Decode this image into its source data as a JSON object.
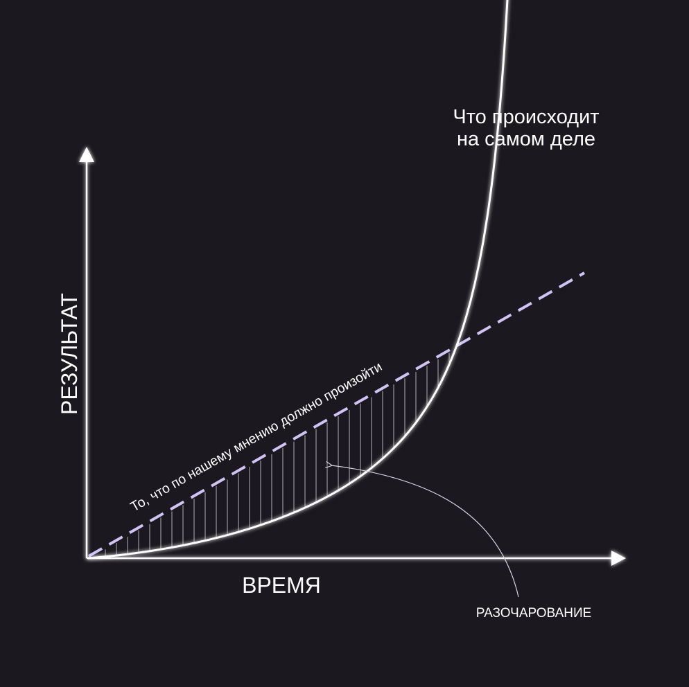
{
  "colors": {
    "background": "#1c1820",
    "axis": "#ffffff",
    "curve": "#ffffff",
    "expectation_line": "#cfc4f4",
    "hatch": "#e4e0ee",
    "annotation": "#d8d4e0"
  },
  "axes": {
    "y_label": "РЕЗУЛЬТАТ",
    "x_label": "ВРЕМЯ"
  },
  "labels": {
    "reality_line1": "Что происходит",
    "reality_line2": "на самом деле",
    "expectation": "То, что по нашему мнению должно произойти",
    "disappointment": "РАЗОЧАРОВАНИЕ"
  }
}
